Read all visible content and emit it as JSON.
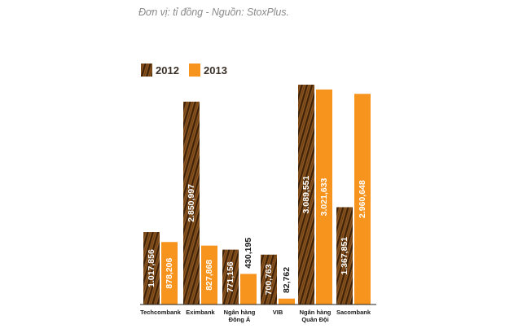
{
  "subtitle": "Đơn vị: tỉ đồng - Nguồn: StoxPlus.",
  "chart_data": {
    "type": "bar",
    "categories": [
      [
        "Techcombank"
      ],
      [
        "Eximbank"
      ],
      [
        "Ngân hàng",
        "Đông Á"
      ],
      [
        "VIB"
      ],
      [
        "Ngân hàng",
        "Quân Đội"
      ],
      [
        "Sacombank"
      ]
    ],
    "series": [
      {
        "name": "2012",
        "color": "#7a4a18",
        "pattern": "wood-stripe",
        "values": [
          1017856,
          2850997,
          771156,
          700763,
          3089551,
          1367851
        ],
        "labels": [
          "1.017,856",
          "2.850,997",
          "771,156",
          "700,763",
          "3.089,551",
          "1.367,851"
        ]
      },
      {
        "name": "2013",
        "color": "#f7941d",
        "pattern": "solid",
        "values": [
          878206,
          827868,
          430195,
          82762,
          3021633,
          2960648
        ],
        "labels": [
          "878,206",
          "827,868",
          "430,195",
          "82,762",
          "3.021,633",
          "2.960,648"
        ]
      }
    ],
    "ylim": [
      0,
      3089551
    ],
    "grid": false,
    "legend": "top-left",
    "value_labels": "inside-rotated",
    "outside_label_color": "#1a1a1a"
  }
}
